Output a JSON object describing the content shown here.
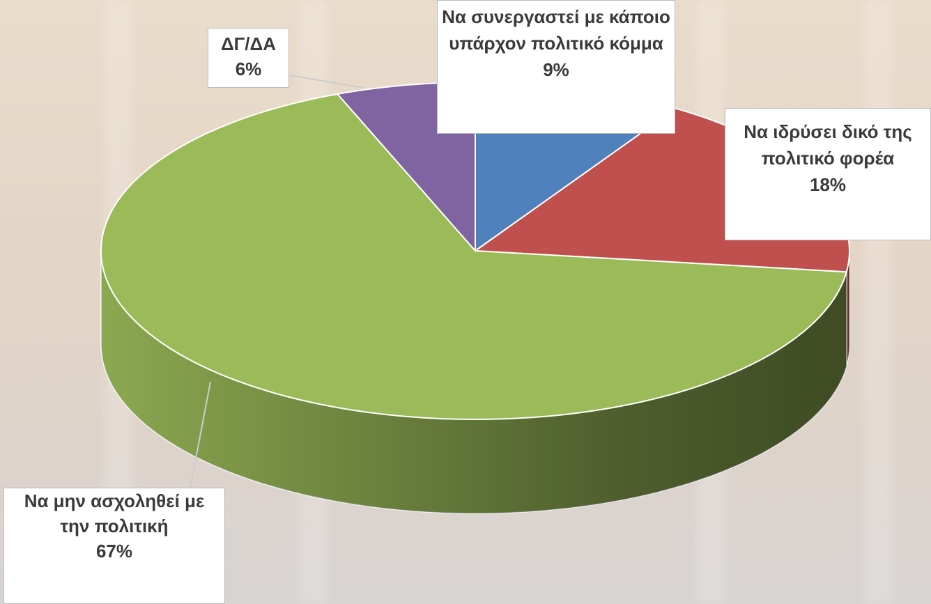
{
  "chart_data": {
    "type": "pie",
    "categories": [
      "Να συνεργαστεί με κάποιο υπάρχον πολιτικό κόμμα",
      "Να ιδρύσει δικό της πολιτικό φορέα",
      "Να μην ασχοληθεί με την πολιτική",
      "ΔΓ/ΔΑ"
    ],
    "values": [
      9,
      18,
      67,
      6
    ],
    "value_labels": [
      "9%",
      "18%",
      "67%",
      "6%"
    ],
    "colors": [
      "#4f81bd",
      "#c0504d",
      "#9bbb59",
      "#8064a2"
    ]
  }
}
